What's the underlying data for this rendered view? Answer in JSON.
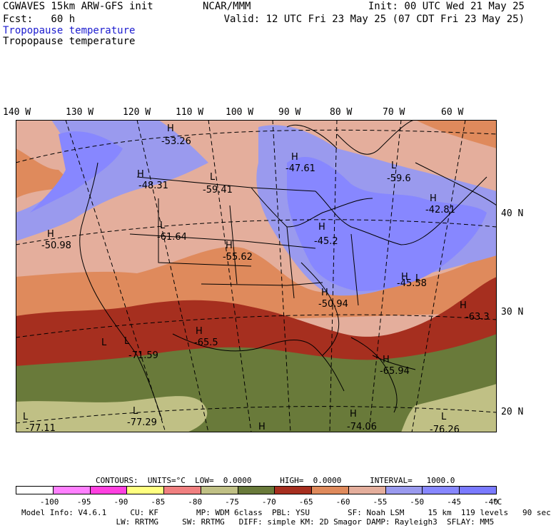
{
  "header": {
    "model": "CGWAVES 15km ARW-GFS init",
    "fcst": "Fcst:   60 h",
    "org": "NCAR/MMM",
    "init": "Init: 00 UTC Wed 21 May 25",
    "valid": "Valid: 12 UTC Fri 23 May 25 (07 CDT Fri 23 May 25)",
    "field1": "Tropopause temperature",
    "field2": "Tropopause temperature"
  },
  "axes": {
    "lon_labels": [
      "140 W",
      "130 W",
      "120 W",
      "110 W",
      "100 W",
      "90 W",
      "80 W",
      "70 W",
      "60 W"
    ],
    "lat_labels": [
      "40 N",
      "30 N",
      "20 N"
    ]
  },
  "map": {
    "region": "North America / CONUS",
    "colors": {
      "above_minus40": "#7a7aff",
      "m45_m40": "#8787ff",
      "m50_m45": "#9a9aee",
      "m55_m50": "#e4ae9c",
      "m60_m55": "#df8a5c",
      "m65_m60": "#a62f1f",
      "m70_m65": "#697a3a",
      "m75_m70": "#c0c085",
      "ocean_cold": "#c8c894"
    },
    "centers": [
      {
        "type": "H",
        "value": "-53.26"
      },
      {
        "type": "H",
        "value": "-48.31"
      },
      {
        "type": "L",
        "value": "-59.41"
      },
      {
        "type": "H",
        "value": "-47.61"
      },
      {
        "type": "L",
        "value": "-59.6"
      },
      {
        "type": "H",
        "value": "-42.81"
      },
      {
        "type": "H",
        "value": "-50.98"
      },
      {
        "type": "L",
        "value": "-61.64"
      },
      {
        "type": "H",
        "value": "-55.62"
      },
      {
        "type": "H",
        "value": "-45.2"
      },
      {
        "type": "H",
        "value": "-45.58"
      },
      {
        "type": "H",
        "value": "-50.94"
      },
      {
        "type": "H",
        "value": "-63.3"
      },
      {
        "type": "H",
        "value": "-65.5"
      },
      {
        "type": "L",
        "value": "-71.59"
      },
      {
        "type": "H",
        "value": "-65.94"
      },
      {
        "type": "L",
        "value": "-77.29"
      },
      {
        "type": "L",
        "value": "-77.11"
      },
      {
        "type": "H",
        "value": "-74.06"
      },
      {
        "type": "L",
        "value": "-76.26"
      }
    ],
    "extra_labels": [
      "H",
      "L",
      "L"
    ]
  },
  "contours": {
    "line": "CONTOURS:  UNITS=°C  LOW=  0.0000      HIGH=  0.0000      INTERVAL=   1000.0"
  },
  "colorbar": {
    "ticks": [
      "-100",
      "-95",
      "-90",
      "-85",
      "-80",
      "-75",
      "-70",
      "-65",
      "-60",
      "-55",
      "-50",
      "-45",
      "-40"
    ],
    "unit": "°C",
    "colors": [
      "#ffffff",
      "#ff80ff",
      "#ff40e0",
      "#ffff80",
      "#f08080",
      "#c0c085",
      "#697a3a",
      "#a62f1f",
      "#df8a5c",
      "#e4ae9c",
      "#9a9aee",
      "#8787ff",
      "#7a7aff"
    ]
  },
  "footer": {
    "line1": "Model Info: V4.6.1     CU: KF        MP: WDM 6class  PBL: YSU        SF: Noah LSM     15 km  119 levels   90 sec",
    "line2": "                    LW: RRTMG     SW: RRTMG   DIFF: simple KM: 2D Smagor DAMP: Rayleigh3  SFLAY: MM5"
  }
}
